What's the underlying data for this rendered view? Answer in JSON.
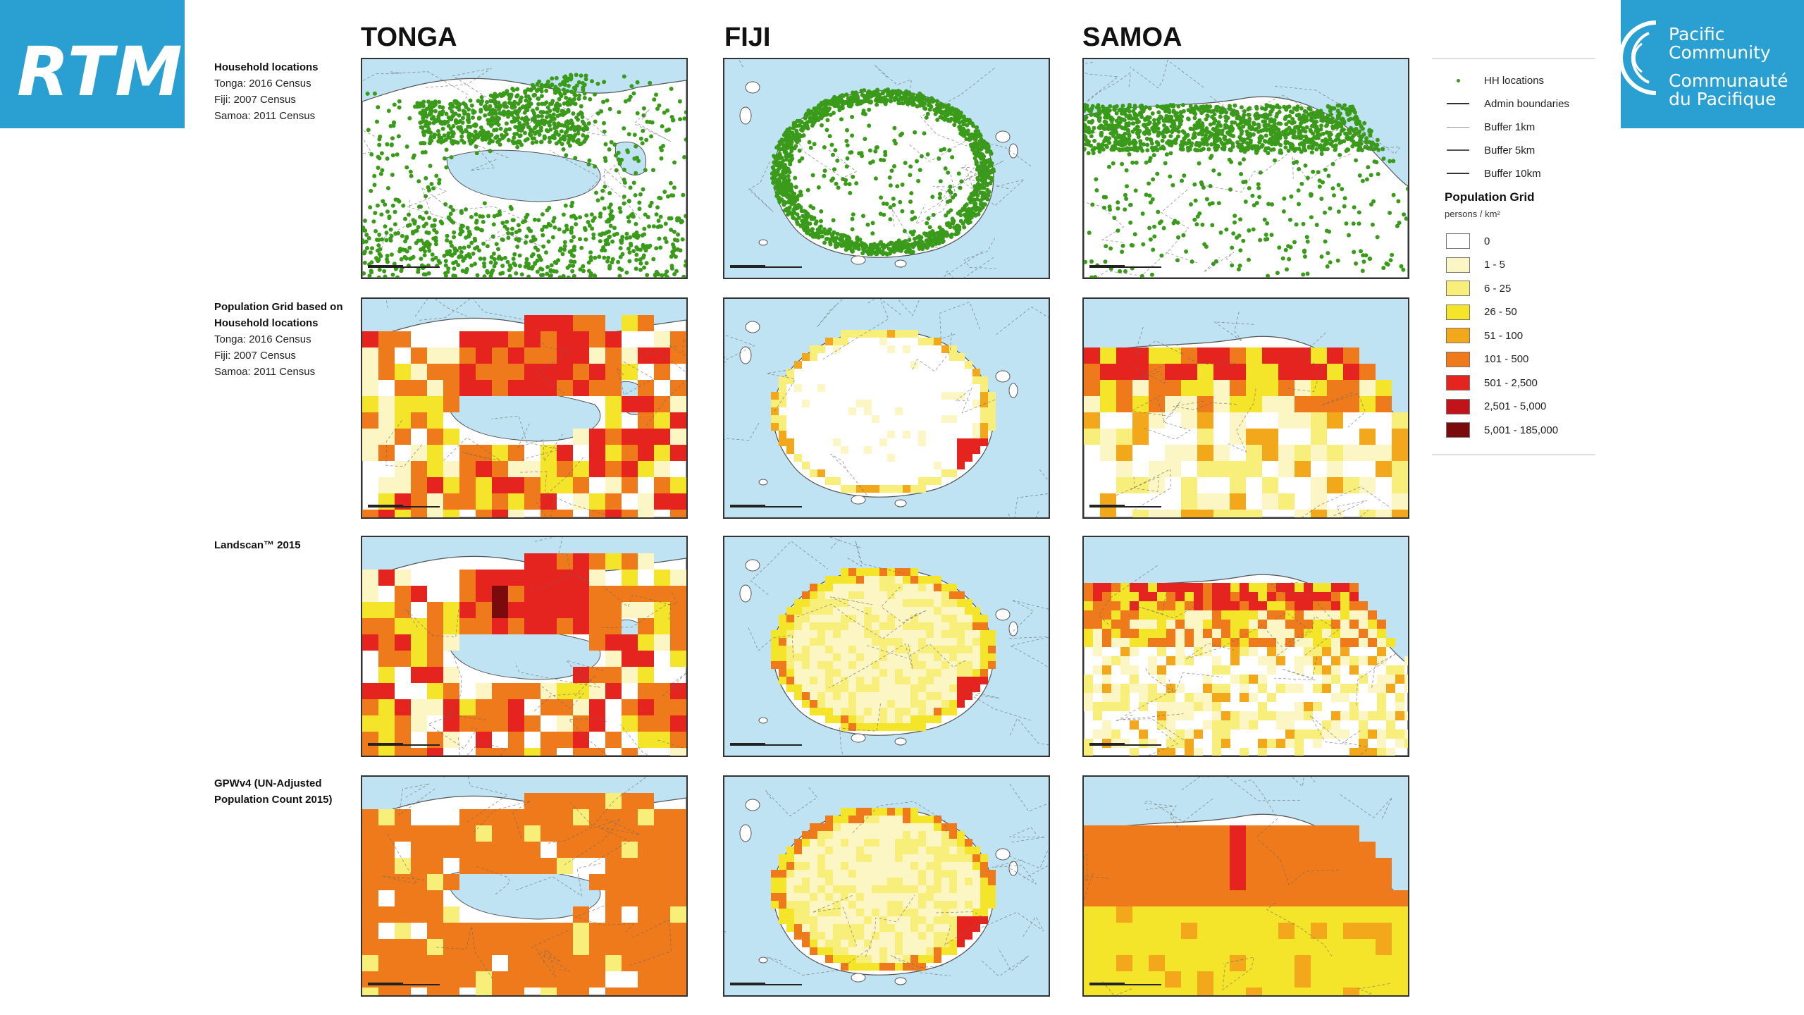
{
  "logos": {
    "left_text": "RTM",
    "right_text": [
      "Pacific",
      "Community",
      "Communauté",
      "du Pacifique"
    ]
  },
  "countries": [
    "TONGA",
    "FIJI",
    "SAMOA"
  ],
  "rows": [
    {
      "title": "Household locations",
      "lines": [
        "Tonga: 2016 Census",
        "Fiji: 2007 Census",
        "Samoa: 2011 Census"
      ]
    },
    {
      "title": "Population Grid based on Household locations",
      "lines": [
        "Tonga: 2016 Census",
        "Fiji: 2007 Census",
        "Samoa: 2011 Census"
      ]
    },
    {
      "title": "Landscan™ 2015",
      "lines": []
    },
    {
      "title": "GPWv4 (UN-Adjusted Population Count 2015)",
      "lines": []
    }
  ],
  "legend": {
    "symbols": [
      {
        "label": "HH locations",
        "kind": "dot"
      },
      {
        "label": "Admin boundaries",
        "kind": "line"
      },
      {
        "label": "Buffer 1km",
        "kind": "thin"
      },
      {
        "label": "Buffer 5km",
        "kind": "mid"
      },
      {
        "label": "Buffer 10km",
        "kind": "line"
      }
    ],
    "grid_title": "Population Grid",
    "grid_unit": "persons / km²",
    "classes": [
      {
        "label": "0",
        "color": "#ffffff"
      },
      {
        "label": "1 - 5",
        "color": "#fbf6c4"
      },
      {
        "label": "6 - 25",
        "color": "#f8ef7a"
      },
      {
        "label": "26 - 50",
        "color": "#f5e52a"
      },
      {
        "label": "51 - 100",
        "color": "#f3a81c"
      },
      {
        "label": "101 - 500",
        "color": "#ef7a1c"
      },
      {
        "label": "501 - 2,500",
        "color": "#e52420"
      },
      {
        "label": "2,501 - 5,000",
        "color": "#c0141a"
      },
      {
        "label": "5,001 - 185,000",
        "color": "#7a0a0c"
      }
    ]
  },
  "colors": {
    "sea": "#bfe3f3",
    "land": "#ffffff",
    "hh_points": "#3a9a1a"
  }
}
